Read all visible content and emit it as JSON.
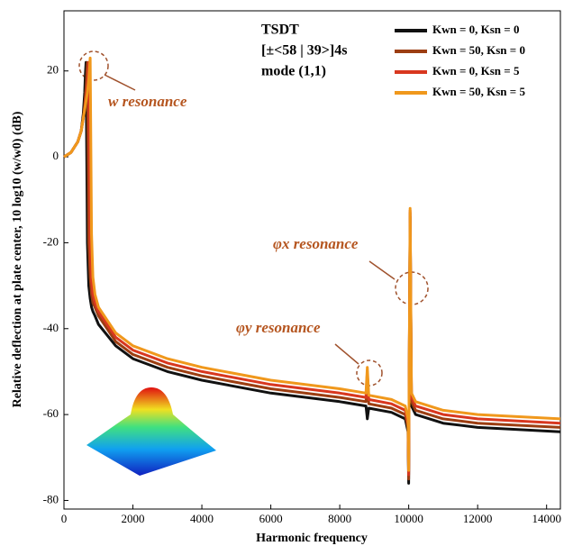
{
  "chart_data": {
    "type": "line",
    "xlabel": "Harmonic frequency",
    "ylabel": "Relative deflection at plate center, 10 log10 (w/w0) (dB)",
    "annotations": [
      "TSDT",
      "[±<58 | 39>]4s",
      "mode (1,1)",
      "w resonance",
      "φx resonance",
      "φy resonance"
    ],
    "x": [
      0,
      200,
      400,
      500,
      560,
      600,
      620,
      640,
      680,
      720,
      760,
      800,
      840,
      900,
      1000,
      1500,
      2000,
      3000,
      4000,
      6000,
      8000,
      8760,
      8800,
      8840,
      9500,
      9900,
      9980,
      10000,
      10040,
      10080,
      10200,
      11000,
      12000,
      14400
    ],
    "series": [
      {
        "name": "Kwn = 0, Ksn = 0",
        "color": "#111111",
        "values": [
          0,
          1,
          3.5,
          6,
          10,
          15,
          19,
          22,
          -20,
          -30,
          -33,
          -35,
          -36,
          -37,
          -39,
          -44,
          -47,
          -50,
          -52,
          -55,
          -57,
          -58,
          -61,
          -58.5,
          -59.5,
          -61,
          -64,
          -76,
          -14,
          -58,
          -60,
          -62,
          -63,
          -64
        ]
      },
      {
        "name": "Kwn = 50, Ksn = 0",
        "color": "#9c3e12",
        "values": [
          0,
          1,
          3.5,
          6,
          9,
          12,
          14,
          16,
          22,
          -20,
          -28,
          -32,
          -34,
          -35,
          -37,
          -43,
          -46,
          -49,
          -51,
          -54,
          -56,
          -57,
          -52,
          -57.5,
          -58.5,
          -60,
          -63,
          -75,
          -13,
          -57,
          -59,
          -61,
          -62,
          -63
        ]
      },
      {
        "name": "Kwn = 0, Ksn = 5",
        "color": "#d8371f",
        "values": [
          0,
          1,
          3.5,
          6,
          9,
          11,
          12.5,
          14,
          17,
          22,
          -20,
          -29,
          -32,
          -34,
          -36,
          -42,
          -45,
          -48,
          -50,
          -53,
          -55,
          -56,
          -50,
          -56.5,
          -57.5,
          -59,
          -62,
          -74,
          -12.5,
          -56,
          -58,
          -60,
          -61,
          -62
        ]
      },
      {
        "name": "Kwn = 50, Ksn = 5",
        "color": "#f0981c",
        "values": [
          0,
          1,
          3.5,
          6,
          9,
          11,
          12,
          13,
          15,
          18,
          23,
          -18,
          -28,
          -32,
          -35,
          -41,
          -44,
          -47,
          -49,
          -52,
          -54,
          -55,
          -49,
          -55.5,
          -56.5,
          -58,
          -61,
          -73,
          -12,
          -55,
          -57,
          -59,
          -60,
          -61
        ]
      }
    ],
    "xlim": [
      0,
      14400
    ],
    "ylim": [
      -82,
      34
    ],
    "xticks": [
      0,
      2000,
      4000,
      6000,
      8000,
      10000,
      12000,
      14000
    ],
    "yticks": [
      -80,
      -60,
      -40,
      -20,
      0,
      20
    ],
    "grid": false,
    "legend": "upper right"
  }
}
